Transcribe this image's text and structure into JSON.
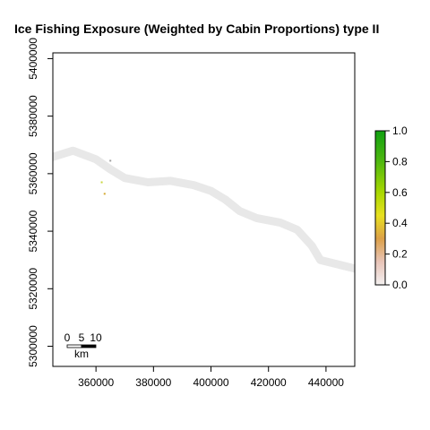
{
  "title": "Ice Fishing Exposure (Weighted by Cabin Proportions) type II",
  "map": {
    "x_ticks": [
      {
        "value": 360000,
        "label": "360000"
      },
      {
        "value": 380000,
        "label": "380000"
      },
      {
        "value": 400000,
        "label": "400000"
      },
      {
        "value": 420000,
        "label": "420000"
      },
      {
        "value": 440000,
        "label": "440000"
      }
    ],
    "y_ticks": [
      {
        "value": 5300000,
        "label": "5300000"
      },
      {
        "value": 5320000,
        "label": "5320000"
      },
      {
        "value": 5340000,
        "label": "5340000"
      },
      {
        "value": 5360000,
        "label": "5360000"
      },
      {
        "value": 5380000,
        "label": "5380000"
      },
      {
        "value": 5400000,
        "label": "5400000"
      }
    ],
    "xlim": [
      345000,
      450000
    ],
    "ylim": [
      5293000,
      5402000
    ],
    "river_color": "#e8e8e8",
    "river_path": [
      [
        345000,
        5365800
      ],
      [
        352000,
        5368000
      ],
      [
        360000,
        5365000
      ],
      [
        365000,
        5361500
      ],
      [
        370000,
        5358500
      ],
      [
        378000,
        5357000
      ],
      [
        386000,
        5357500
      ],
      [
        394000,
        5356000
      ],
      [
        400000,
        5354000
      ],
      [
        405000,
        5351000
      ],
      [
        410000,
        5347000
      ],
      [
        416000,
        5344500
      ],
      [
        424000,
        5343000
      ],
      [
        430000,
        5340500
      ],
      [
        435000,
        5335000
      ],
      [
        438000,
        5330000
      ],
      [
        444000,
        5328500
      ],
      [
        450000,
        5327000
      ]
    ],
    "hotspots": [
      {
        "x": 362000,
        "y": 5357000,
        "color": "#c8d63c"
      },
      {
        "x": 363000,
        "y": 5353000,
        "color": "#d4a830"
      },
      {
        "x": 365000,
        "y": 5364500,
        "color": "#a0a0a0"
      }
    ]
  },
  "legend": {
    "ticks": [
      {
        "value": 0.0,
        "label": "0.0"
      },
      {
        "value": 0.2,
        "label": "0.2"
      },
      {
        "value": 0.4,
        "label": "0.4"
      },
      {
        "value": 0.6,
        "label": "0.6"
      },
      {
        "value": 0.8,
        "label": "0.8"
      },
      {
        "value": 1.0,
        "label": "1.0"
      }
    ],
    "range": [
      0,
      1
    ],
    "gradient_stops": [
      {
        "offset": 0.0,
        "color": "#f3f0f0"
      },
      {
        "offset": 0.15,
        "color": "#e8c4b8"
      },
      {
        "offset": 0.3,
        "color": "#dca048"
      },
      {
        "offset": 0.45,
        "color": "#e8e020"
      },
      {
        "offset": 0.6,
        "color": "#a8d800"
      },
      {
        "offset": 0.8,
        "color": "#50b810"
      },
      {
        "offset": 1.0,
        "color": "#10a010"
      }
    ]
  },
  "scalebar": {
    "labels": [
      "0",
      "5",
      "10"
    ],
    "unit": "km"
  }
}
